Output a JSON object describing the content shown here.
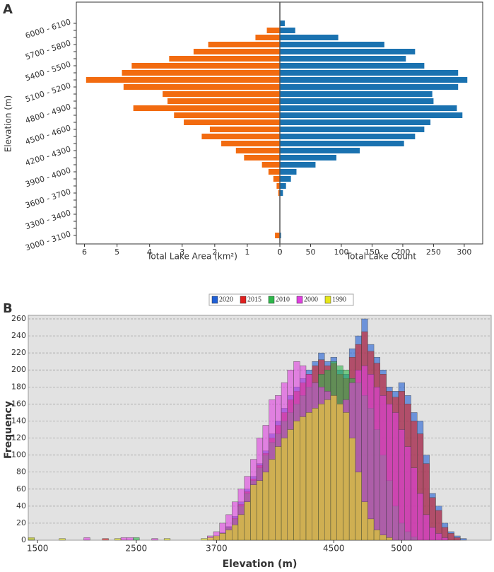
{
  "chart_data": [
    {
      "type": "butterfly",
      "panel": "A",
      "ylabel": "Elevation (m)",
      "categories": [
        "3000 - 3100",
        null,
        null,
        "3300 - 3400",
        null,
        null,
        "3600 - 3700",
        null,
        null,
        "3900 - 4000",
        null,
        null,
        "4200 - 4300",
        null,
        null,
        "4500 - 4600",
        null,
        null,
        "4800 - 4900",
        null,
        null,
        "5100 - 5200",
        null,
        null,
        "5400 - 5500",
        null,
        null,
        "5700 - 5800",
        null,
        null,
        "6000 - 6100"
      ],
      "left": {
        "xlabel": "Total Lake Area (km²)",
        "color": "#f26b10",
        "xlim": [
          6.25,
          0
        ],
        "xticks": [
          6,
          5,
          4,
          3,
          2,
          1,
          0
        ],
        "values": [
          0.15,
          0,
          0,
          0,
          0,
          0,
          0.05,
          0.1,
          0.2,
          0.35,
          0.55,
          1.1,
          1.35,
          1.8,
          2.4,
          2.15,
          2.95,
          3.25,
          4.5,
          3.45,
          3.6,
          4.8,
          5.95,
          4.85,
          4.55,
          3.4,
          2.65,
          2.2,
          0.75,
          0.4,
          0
        ]
      },
      "right": {
        "xlabel": "Total Lake Count",
        "color": "#1a72b0",
        "xlim": [
          0,
          330
        ],
        "xticks": [
          0,
          50,
          100,
          150,
          200,
          250,
          300
        ],
        "values": [
          2,
          0,
          0,
          0,
          0,
          0,
          5,
          10,
          18,
          27,
          58,
          92,
          130,
          202,
          220,
          235,
          245,
          297,
          288,
          250,
          248,
          290,
          305,
          290,
          235,
          205,
          220,
          170,
          95,
          25,
          8
        ]
      }
    },
    {
      "type": "bar",
      "panel": "B",
      "xlabel": "Elevation (m)",
      "ylabel": "Frequency",
      "ylim": [
        0,
        260
      ],
      "yticks": [
        0,
        20,
        40,
        60,
        80,
        100,
        120,
        140,
        160,
        180,
        200,
        220,
        240,
        260
      ],
      "grid": true,
      "legend": "top",
      "categories": [
        null,
        "1500",
        null,
        null,
        null,
        null,
        null,
        null,
        null,
        null,
        null,
        null,
        null,
        null,
        null,
        null,
        null,
        "2500",
        null,
        null,
        null,
        null,
        null,
        null,
        null,
        null,
        null,
        null,
        null,
        null,
        "3700",
        null,
        null,
        null,
        null,
        null,
        null,
        null,
        null,
        null,
        null,
        null,
        null,
        null,
        null,
        null,
        null,
        null,
        null,
        "4500",
        null,
        null,
        null,
        null,
        null,
        null,
        null,
        null,
        null,
        null,
        "5000",
        null,
        null,
        null,
        null,
        null,
        null,
        null,
        null,
        null,
        null,
        null,
        null,
        null,
        null
      ],
      "series": [
        {
          "name": "2020",
          "color": "#1f5fd6",
          "values": [
            2,
            0,
            0,
            0,
            0,
            0,
            0,
            0,
            0,
            0,
            0,
            0,
            0,
            0,
            0,
            0,
            0,
            0,
            0,
            0,
            0,
            0,
            0,
            0,
            0,
            0,
            0,
            0,
            0,
            0,
            4,
            9,
            16,
            28,
            45,
            60,
            75,
            90,
            105,
            125,
            140,
            155,
            170,
            180,
            190,
            200,
            210,
            220,
            210,
            215,
            200,
            195,
            225,
            240,
            260,
            230,
            215,
            200,
            180,
            175,
            185,
            170,
            150,
            140,
            100,
            55,
            40,
            20,
            10,
            5,
            2,
            0,
            0,
            0,
            0
          ]
        },
        {
          "name": "2015",
          "color": "#e0201f",
          "values": [
            0,
            0,
            0,
            0,
            0,
            0,
            0,
            0,
            0,
            0,
            0,
            0,
            2,
            0,
            0,
            0,
            0,
            0,
            0,
            0,
            0,
            0,
            0,
            0,
            0,
            0,
            0,
            0,
            0,
            0,
            4,
            8,
            15,
            26,
            42,
            57,
            72,
            88,
            102,
            120,
            135,
            150,
            165,
            175,
            185,
            195,
            205,
            212,
            205,
            208,
            195,
            190,
            215,
            230,
            245,
            222,
            208,
            195,
            175,
            168,
            175,
            160,
            140,
            125,
            90,
            50,
            35,
            15,
            8,
            3,
            0,
            0,
            0,
            0,
            0
          ]
        },
        {
          "name": "2010",
          "color": "#2db84a",
          "values": [
            0,
            0,
            0,
            0,
            0,
            0,
            0,
            0,
            0,
            0,
            0,
            0,
            0,
            0,
            0,
            0,
            0,
            3,
            0,
            0,
            0,
            0,
            0,
            0,
            0,
            0,
            0,
            0,
            0,
            0,
            3,
            8,
            15,
            25,
            40,
            55,
            70,
            85,
            100,
            115,
            125,
            140,
            150,
            160,
            170,
            180,
            185,
            195,
            200,
            210,
            205,
            200,
            190,
            185,
            170,
            155,
            130,
            100,
            70,
            40,
            20,
            10,
            4,
            0,
            0,
            0,
            0,
            0,
            0,
            0,
            0,
            0,
            0,
            0,
            0
          ]
        },
        {
          "name": "2000",
          "color": "#e040e0",
          "values": [
            0,
            0,
            0,
            0,
            0,
            0,
            0,
            0,
            0,
            3,
            0,
            0,
            0,
            0,
            0,
            3,
            3,
            0,
            0,
            0,
            2,
            0,
            0,
            0,
            0,
            0,
            0,
            0,
            0,
            5,
            10,
            20,
            30,
            45,
            60,
            75,
            95,
            120,
            135,
            165,
            170,
            185,
            200,
            210,
            205,
            195,
            185,
            180,
            175,
            170,
            160,
            165,
            185,
            200,
            205,
            195,
            180,
            170,
            160,
            150,
            130,
            110,
            85,
            55,
            30,
            15,
            8,
            3,
            0,
            0,
            0,
            0,
            0,
            0,
            0
          ]
        },
        {
          "name": "1990",
          "color": "#e6e619",
          "values": [
            3,
            0,
            0,
            0,
            0,
            2,
            0,
            0,
            0,
            0,
            0,
            0,
            0,
            0,
            2,
            0,
            0,
            0,
            0,
            0,
            0,
            0,
            2,
            0,
            0,
            0,
            0,
            0,
            2,
            3,
            5,
            8,
            12,
            18,
            30,
            45,
            65,
            70,
            80,
            95,
            110,
            120,
            130,
            140,
            145,
            150,
            155,
            160,
            165,
            170,
            160,
            150,
            120,
            80,
            45,
            25,
            12,
            6,
            3,
            0,
            0,
            0,
            0,
            0,
            0,
            0,
            0,
            0,
            0,
            0,
            0,
            0,
            0,
            0,
            0
          ]
        }
      ]
    }
  ]
}
